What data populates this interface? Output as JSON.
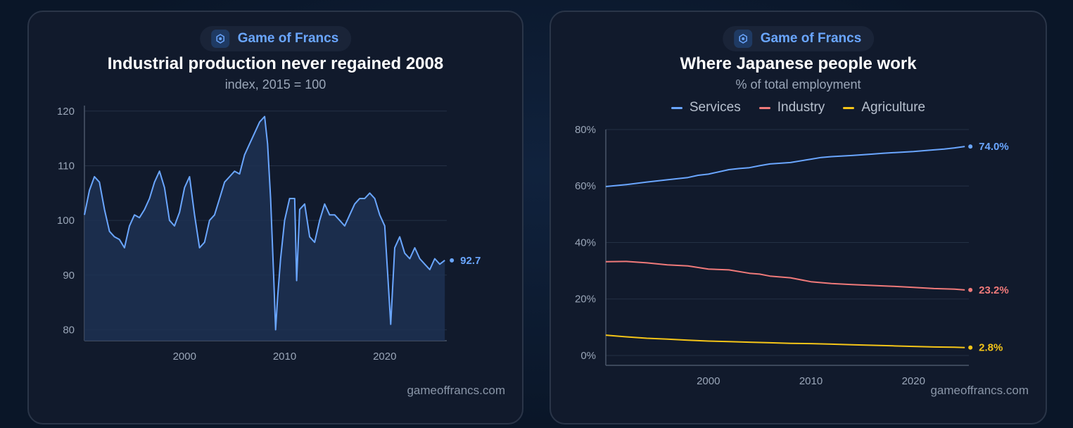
{
  "charts": [
    {
      "brand": "Game of Francs",
      "title": "Industrial production never regained 2008",
      "subtitle": "index, 2015 = 100",
      "footer": "gameoffrancs.com",
      "end_label": "92.7"
    },
    {
      "brand": "Game of Francs",
      "title": "Where Japanese people work",
      "subtitle": "% of total employment",
      "footer": "gameoffrancs.com",
      "legend": [
        "Services",
        "Industry",
        "Agriculture"
      ],
      "end_labels": [
        "74.0%",
        "23.2%",
        "2.8%"
      ]
    }
  ],
  "colors": {
    "services": "#6aa6ff",
    "industry": "#f07a7a",
    "agriculture": "#f5c518",
    "index_line": "#6aa6ff",
    "brand": "#6aa6ff"
  },
  "chart_data": [
    {
      "type": "area",
      "title": "Industrial production never regained 2008",
      "subtitle": "index, 2015 = 100",
      "xlim": [
        1990,
        2026.2
      ],
      "ylim": [
        78,
        121
      ],
      "x_ticks": [
        2000,
        2010,
        2020
      ],
      "y_ticks": [
        80,
        90,
        100,
        110,
        120
      ],
      "grid": true,
      "series": [
        {
          "x": [
            1990,
            1990.5,
            1991,
            1991.5,
            1992,
            1992.5,
            1993,
            1993.5,
            1994,
            1994.5,
            1995,
            1995.5,
            1996,
            1996.5,
            1997,
            1997.5,
            1998,
            1998.5,
            1999,
            1999.5,
            2000,
            2000.5,
            2001,
            2001.5,
            2002,
            2002.5,
            2003,
            2003.5,
            2004,
            2004.5,
            2005,
            2005.5,
            2006,
            2006.5,
            2007,
            2007.5,
            2008,
            2008.3,
            2008.6,
            2008.9,
            2009.1,
            2009.3,
            2009.6,
            2010,
            2010.5,
            2011,
            2011.2,
            2011.5,
            2012,
            2012.5,
            2013,
            2013.5,
            2014,
            2014.5,
            2015,
            2015.5,
            2016,
            2016.5,
            2017,
            2017.5,
            2018,
            2018.5,
            2019,
            2019.5,
            2020,
            2020.3,
            2020.6,
            2021,
            2021.5,
            2022,
            2022.5,
            2023,
            2023.5,
            2024,
            2024.5,
            2025,
            2025.5,
            2026
          ],
          "y": [
            101,
            105.5,
            108,
            107,
            102,
            98,
            97,
            96.5,
            95,
            99,
            101,
            100.5,
            102,
            104,
            107,
            109,
            106,
            100,
            99,
            101.5,
            106,
            108,
            101,
            95,
            96,
            100,
            101,
            104,
            107,
            108,
            109,
            108.5,
            112,
            114,
            116,
            118,
            119,
            114,
            104,
            90,
            80,
            86,
            93,
            100,
            104,
            104,
            89,
            102,
            103,
            97,
            96,
            100,
            103,
            101,
            101,
            100,
            99,
            101,
            103,
            104,
            104,
            105,
            104,
            101,
            99,
            90,
            81,
            95,
            97,
            94,
            93,
            95,
            93,
            92,
            91,
            93,
            92,
            92.7
          ]
        }
      ]
    },
    {
      "type": "line",
      "title": "Where Japanese people work",
      "subtitle": "% of total employment",
      "xlim": [
        1990,
        2025.4
      ],
      "ylim": [
        -3.5,
        80
      ],
      "x_ticks": [
        2000,
        2010,
        2020
      ],
      "y_ticks": [
        "0%",
        "20%",
        "40%",
        "60%",
        "80%"
      ],
      "grid": true,
      "series": [
        {
          "name": "Services",
          "x": [
            1990,
            1992,
            1994,
            1996,
            1998,
            1999,
            2000,
            2002,
            2003,
            2004,
            2005,
            2006,
            2008,
            2010,
            2011,
            2012,
            2014,
            2016,
            2017,
            2018,
            2020,
            2022,
            2023,
            2024,
            2025
          ],
          "y": [
            59.8,
            60.5,
            61.4,
            62.2,
            63,
            63.8,
            64.2,
            65.8,
            66.2,
            66.5,
            67.2,
            67.8,
            68.3,
            69.5,
            70.1,
            70.4,
            70.8,
            71.3,
            71.6,
            71.8,
            72.2,
            72.8,
            73.1,
            73.5,
            74.0
          ]
        },
        {
          "name": "Industry",
          "x": [
            1990,
            1992,
            1994,
            1996,
            1998,
            2000,
            2002,
            2004,
            2005,
            2006,
            2008,
            2010,
            2012,
            2014,
            2016,
            2018,
            2020,
            2022,
            2024,
            2025
          ],
          "y": [
            33.2,
            33.3,
            32.8,
            32.1,
            31.7,
            30.6,
            30.3,
            29.1,
            28.8,
            28.1,
            27.5,
            26.1,
            25.5,
            25.1,
            24.8,
            24.5,
            24.1,
            23.7,
            23.5,
            23.2
          ]
        },
        {
          "name": "Agriculture",
          "x": [
            1990,
            1992,
            1994,
            1996,
            1998,
            2000,
            2002,
            2004,
            2006,
            2008,
            2010,
            2012,
            2014,
            2016,
            2018,
            2020,
            2022,
            2024,
            2025
          ],
          "y": [
            7.2,
            6.6,
            6.1,
            5.8,
            5.4,
            5.1,
            4.9,
            4.7,
            4.5,
            4.3,
            4.2,
            4.0,
            3.8,
            3.6,
            3.4,
            3.2,
            3.0,
            2.9,
            2.8
          ]
        }
      ]
    }
  ]
}
